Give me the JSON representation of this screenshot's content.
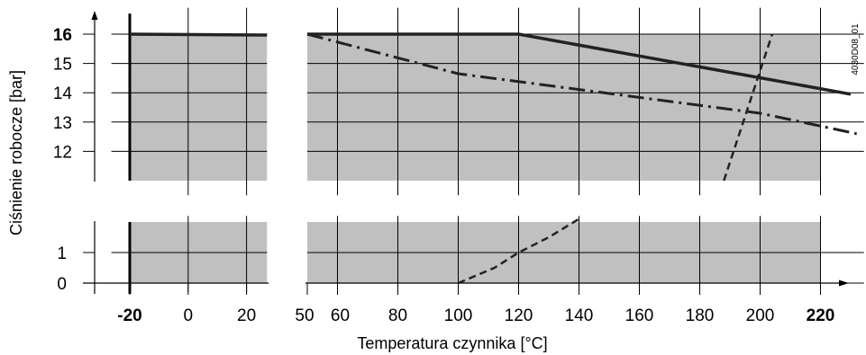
{
  "chart_data": {
    "type": "area",
    "title": "",
    "xlabel": "Temperatura czynnika [°C]",
    "ylabel": "Ciśnienie robocze [bar]",
    "watermark": "4030D08_01",
    "x_ticks": [
      {
        "value": -20,
        "label": "-20",
        "bold": true
      },
      {
        "value": 0,
        "label": "0",
        "bold": false
      },
      {
        "value": 20,
        "label": "20",
        "bold": false
      },
      {
        "value": 50,
        "label": "50",
        "bold": false
      },
      {
        "value": 60,
        "label": "60",
        "bold": false
      },
      {
        "value": 80,
        "label": "80",
        "bold": false
      },
      {
        "value": 100,
        "label": "100",
        "bold": false
      },
      {
        "value": 120,
        "label": "120",
        "bold": false
      },
      {
        "value": 140,
        "label": "140",
        "bold": false
      },
      {
        "value": 160,
        "label": "160",
        "bold": false
      },
      {
        "value": 180,
        "label": "180",
        "bold": false
      },
      {
        "value": 200,
        "label": "200",
        "bold": false
      },
      {
        "value": 220,
        "label": "220",
        "bold": true
      }
    ],
    "y_ticks_upper": [
      {
        "value": 16,
        "label": "16",
        "bold": true
      },
      {
        "value": 15,
        "label": "15",
        "bold": false
      },
      {
        "value": 14,
        "label": "14",
        "bold": false
      },
      {
        "value": 13,
        "label": "13",
        "bold": false
      },
      {
        "value": 12,
        "label": "12",
        "bold": false
      }
    ],
    "y_ticks_lower": [
      {
        "value": 1,
        "label": "1",
        "bold": false
      },
      {
        "value": 0,
        "label": "0",
        "bold": false
      }
    ],
    "x_segments": [
      [
        -30,
        27
      ],
      [
        50,
        232
      ]
    ],
    "y_segments": [
      [
        -0.3,
        2.2
      ],
      [
        10.5,
        16.9
      ]
    ],
    "shaded_regions": [
      {
        "x": [
          -20,
          27
        ],
        "y": [
          0,
          2
        ]
      },
      {
        "x": [
          50,
          220
        ],
        "y": [
          0,
          2
        ]
      },
      {
        "x": [
          -20,
          27
        ],
        "y": [
          11,
          16
        ]
      },
      {
        "x": [
          50,
          220
        ],
        "y": [
          11,
          16
        ]
      }
    ],
    "series": [
      {
        "style": "solid",
        "points": [
          [
            -20,
            16
          ],
          [
            27,
            15.97
          ]
        ]
      },
      {
        "style": "solid",
        "points": [
          [
            50,
            16
          ],
          [
            120,
            16
          ],
          [
            230,
            13.95
          ]
        ]
      },
      {
        "style": "dash-dot",
        "points": [
          [
            50,
            16
          ],
          [
            100,
            14.65
          ],
          [
            200,
            13.3
          ],
          [
            232,
            12.6
          ]
        ]
      },
      {
        "style": "dashed",
        "points": [
          [
            100,
            0
          ],
          [
            112,
            0.5
          ],
          [
            120,
            1
          ],
          [
            130,
            1.5
          ],
          [
            140,
            2.1
          ]
        ]
      },
      {
        "style": "dashed",
        "points": [
          [
            188,
            11
          ],
          [
            196,
            13.5
          ],
          [
            204,
            16
          ]
        ]
      }
    ],
    "vertical_limit_line": -20
  }
}
